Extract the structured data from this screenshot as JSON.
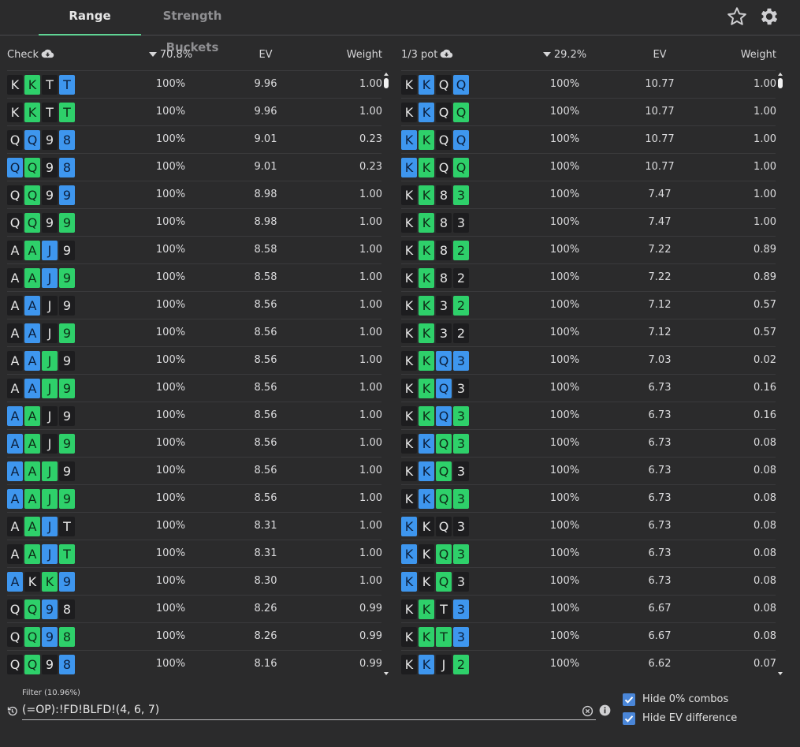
{
  "tabs": {
    "range": "Range",
    "strength_buckets": "Strength Buckets"
  },
  "icons": {
    "favorite": "star-icon",
    "settings": "gear-icon",
    "download": "cloud-download-icon",
    "history": "history-icon",
    "clear": "clear-circle-icon",
    "info": "info-icon"
  },
  "colors": {
    "spade_or_club_dark": "#1d1d1f",
    "heart_green": "#2ed06a",
    "diamond_blue": "#3e96ee",
    "accent": "#5fd494",
    "checkbox": "#4a86d8"
  },
  "panels": [
    {
      "name": "Check",
      "freq": "70.8%",
      "ev_label": "EV",
      "weight_label": "Weight",
      "rows": [
        {
          "cards": [
            [
              "K",
              "s"
            ],
            [
              "K",
              "h"
            ],
            [
              "T",
              "s"
            ],
            [
              "T",
              "d"
            ]
          ],
          "freq": "100%",
          "ev": "9.96",
          "weight": "1.00"
        },
        {
          "cards": [
            [
              "K",
              "s"
            ],
            [
              "K",
              "h"
            ],
            [
              "T",
              "s"
            ],
            [
              "T",
              "h"
            ]
          ],
          "freq": "100%",
          "ev": "9.96",
          "weight": "1.00"
        },
        {
          "cards": [
            [
              "Q",
              "s"
            ],
            [
              "Q",
              "d"
            ],
            [
              "9",
              "s"
            ],
            [
              "8",
              "d"
            ]
          ],
          "freq": "100%",
          "ev": "9.01",
          "weight": "0.23"
        },
        {
          "cards": [
            [
              "Q",
              "d"
            ],
            [
              "Q",
              "h"
            ],
            [
              "9",
              "s"
            ],
            [
              "8",
              "d"
            ]
          ],
          "freq": "100%",
          "ev": "9.01",
          "weight": "0.23"
        },
        {
          "cards": [
            [
              "Q",
              "s"
            ],
            [
              "Q",
              "h"
            ],
            [
              "9",
              "s"
            ],
            [
              "9",
              "d"
            ]
          ],
          "freq": "100%",
          "ev": "8.98",
          "weight": "1.00"
        },
        {
          "cards": [
            [
              "Q",
              "s"
            ],
            [
              "Q",
              "h"
            ],
            [
              "9",
              "s"
            ],
            [
              "9",
              "h"
            ]
          ],
          "freq": "100%",
          "ev": "8.98",
          "weight": "1.00"
        },
        {
          "cards": [
            [
              "A",
              "s"
            ],
            [
              "A",
              "h"
            ],
            [
              "J",
              "d"
            ],
            [
              "9",
              "s"
            ]
          ],
          "freq": "100%",
          "ev": "8.58",
          "weight": "1.00"
        },
        {
          "cards": [
            [
              "A",
              "s"
            ],
            [
              "A",
              "h"
            ],
            [
              "J",
              "d"
            ],
            [
              "9",
              "h"
            ]
          ],
          "freq": "100%",
          "ev": "8.58",
          "weight": "1.00"
        },
        {
          "cards": [
            [
              "A",
              "s"
            ],
            [
              "A",
              "d"
            ],
            [
              "J",
              "s"
            ],
            [
              "9",
              "s"
            ]
          ],
          "freq": "100%",
          "ev": "8.56",
          "weight": "1.00"
        },
        {
          "cards": [
            [
              "A",
              "s"
            ],
            [
              "A",
              "d"
            ],
            [
              "J",
              "s"
            ],
            [
              "9",
              "h"
            ]
          ],
          "freq": "100%",
          "ev": "8.56",
          "weight": "1.00"
        },
        {
          "cards": [
            [
              "A",
              "s"
            ],
            [
              "A",
              "d"
            ],
            [
              "J",
              "h"
            ],
            [
              "9",
              "s"
            ]
          ],
          "freq": "100%",
          "ev": "8.56",
          "weight": "1.00"
        },
        {
          "cards": [
            [
              "A",
              "s"
            ],
            [
              "A",
              "d"
            ],
            [
              "J",
              "h"
            ],
            [
              "9",
              "h"
            ]
          ],
          "freq": "100%",
          "ev": "8.56",
          "weight": "1.00"
        },
        {
          "cards": [
            [
              "A",
              "d"
            ],
            [
              "A",
              "h"
            ],
            [
              "J",
              "s"
            ],
            [
              "9",
              "s"
            ]
          ],
          "freq": "100%",
          "ev": "8.56",
          "weight": "1.00"
        },
        {
          "cards": [
            [
              "A",
              "d"
            ],
            [
              "A",
              "h"
            ],
            [
              "J",
              "s"
            ],
            [
              "9",
              "h"
            ]
          ],
          "freq": "100%",
          "ev": "8.56",
          "weight": "1.00"
        },
        {
          "cards": [
            [
              "A",
              "d"
            ],
            [
              "A",
              "h"
            ],
            [
              "J",
              "h"
            ],
            [
              "9",
              "s"
            ]
          ],
          "freq": "100%",
          "ev": "8.56",
          "weight": "1.00"
        },
        {
          "cards": [
            [
              "A",
              "d"
            ],
            [
              "A",
              "h"
            ],
            [
              "J",
              "h"
            ],
            [
              "9",
              "h"
            ]
          ],
          "freq": "100%",
          "ev": "8.56",
          "weight": "1.00"
        },
        {
          "cards": [
            [
              "A",
              "s"
            ],
            [
              "A",
              "h"
            ],
            [
              "J",
              "d"
            ],
            [
              "T",
              "s"
            ]
          ],
          "freq": "100%",
          "ev": "8.31",
          "weight": "1.00"
        },
        {
          "cards": [
            [
              "A",
              "s"
            ],
            [
              "A",
              "h"
            ],
            [
              "J",
              "d"
            ],
            [
              "T",
              "h"
            ]
          ],
          "freq": "100%",
          "ev": "8.31",
          "weight": "1.00"
        },
        {
          "cards": [
            [
              "A",
              "d"
            ],
            [
              "K",
              "s"
            ],
            [
              "K",
              "h"
            ],
            [
              "9",
              "d"
            ]
          ],
          "freq": "100%",
          "ev": "8.30",
          "weight": "1.00"
        },
        {
          "cards": [
            [
              "Q",
              "s"
            ],
            [
              "Q",
              "h"
            ],
            [
              "9",
              "d"
            ],
            [
              "8",
              "s"
            ]
          ],
          "freq": "100%",
          "ev": "8.26",
          "weight": "0.99"
        },
        {
          "cards": [
            [
              "Q",
              "s"
            ],
            [
              "Q",
              "h"
            ],
            [
              "9",
              "d"
            ],
            [
              "8",
              "h"
            ]
          ],
          "freq": "100%",
          "ev": "8.26",
          "weight": "0.99"
        },
        {
          "cards": [
            [
              "Q",
              "s"
            ],
            [
              "Q",
              "h"
            ],
            [
              "9",
              "s"
            ],
            [
              "8",
              "d"
            ]
          ],
          "freq": "100%",
          "ev": "8.16",
          "weight": "0.99"
        }
      ]
    },
    {
      "name": "1/3 pot",
      "freq": "29.2%",
      "ev_label": "EV",
      "weight_label": "Weight",
      "rows": [
        {
          "cards": [
            [
              "K",
              "s"
            ],
            [
              "K",
              "d"
            ],
            [
              "Q",
              "s"
            ],
            [
              "Q",
              "d"
            ]
          ],
          "freq": "100%",
          "ev": "10.77",
          "weight": "1.00"
        },
        {
          "cards": [
            [
              "K",
              "s"
            ],
            [
              "K",
              "d"
            ],
            [
              "Q",
              "s"
            ],
            [
              "Q",
              "h"
            ]
          ],
          "freq": "100%",
          "ev": "10.77",
          "weight": "1.00"
        },
        {
          "cards": [
            [
              "K",
              "d"
            ],
            [
              "K",
              "h"
            ],
            [
              "Q",
              "s"
            ],
            [
              "Q",
              "d"
            ]
          ],
          "freq": "100%",
          "ev": "10.77",
          "weight": "1.00"
        },
        {
          "cards": [
            [
              "K",
              "d"
            ],
            [
              "K",
              "h"
            ],
            [
              "Q",
              "s"
            ],
            [
              "Q",
              "h"
            ]
          ],
          "freq": "100%",
          "ev": "10.77",
          "weight": "1.00"
        },
        {
          "cards": [
            [
              "K",
              "s"
            ],
            [
              "K",
              "h"
            ],
            [
              "8",
              "s"
            ],
            [
              "3",
              "h"
            ]
          ],
          "freq": "100%",
          "ev": "7.47",
          "weight": "1.00"
        },
        {
          "cards": [
            [
              "K",
              "s"
            ],
            [
              "K",
              "h"
            ],
            [
              "8",
              "s"
            ],
            [
              "3",
              "s"
            ]
          ],
          "freq": "100%",
          "ev": "7.47",
          "weight": "1.00"
        },
        {
          "cards": [
            [
              "K",
              "s"
            ],
            [
              "K",
              "h"
            ],
            [
              "8",
              "s"
            ],
            [
              "2",
              "h"
            ]
          ],
          "freq": "100%",
          "ev": "7.22",
          "weight": "0.89"
        },
        {
          "cards": [
            [
              "K",
              "s"
            ],
            [
              "K",
              "h"
            ],
            [
              "8",
              "s"
            ],
            [
              "2",
              "s"
            ]
          ],
          "freq": "100%",
          "ev": "7.22",
          "weight": "0.89"
        },
        {
          "cards": [
            [
              "K",
              "s"
            ],
            [
              "K",
              "h"
            ],
            [
              "3",
              "s"
            ],
            [
              "2",
              "h"
            ]
          ],
          "freq": "100%",
          "ev": "7.12",
          "weight": "0.57"
        },
        {
          "cards": [
            [
              "K",
              "s"
            ],
            [
              "K",
              "h"
            ],
            [
              "3",
              "s"
            ],
            [
              "2",
              "s"
            ]
          ],
          "freq": "100%",
          "ev": "7.12",
          "weight": "0.57"
        },
        {
          "cards": [
            [
              "K",
              "s"
            ],
            [
              "K",
              "h"
            ],
            [
              "Q",
              "d"
            ],
            [
              "3",
              "d"
            ]
          ],
          "freq": "100%",
          "ev": "7.03",
          "weight": "0.02"
        },
        {
          "cards": [
            [
              "K",
              "s"
            ],
            [
              "K",
              "h"
            ],
            [
              "Q",
              "d"
            ],
            [
              "3",
              "s"
            ]
          ],
          "freq": "100%",
          "ev": "6.73",
          "weight": "0.16"
        },
        {
          "cards": [
            [
              "K",
              "s"
            ],
            [
              "K",
              "h"
            ],
            [
              "Q",
              "d"
            ],
            [
              "3",
              "h"
            ]
          ],
          "freq": "100%",
          "ev": "6.73",
          "weight": "0.16"
        },
        {
          "cards": [
            [
              "K",
              "s"
            ],
            [
              "K",
              "d"
            ],
            [
              "Q",
              "h"
            ],
            [
              "3",
              "h"
            ]
          ],
          "freq": "100%",
          "ev": "6.73",
          "weight": "0.08"
        },
        {
          "cards": [
            [
              "K",
              "s"
            ],
            [
              "K",
              "d"
            ],
            [
              "Q",
              "h"
            ],
            [
              "3",
              "s"
            ]
          ],
          "freq": "100%",
          "ev": "6.73",
          "weight": "0.08"
        },
        {
          "cards": [
            [
              "K",
              "s"
            ],
            [
              "K",
              "d"
            ],
            [
              "Q",
              "h"
            ],
            [
              "3",
              "h"
            ]
          ],
          "freq": "100%",
          "ev": "6.73",
          "weight": "0.08"
        },
        {
          "cards": [
            [
              "K",
              "d"
            ],
            [
              "K",
              "s"
            ],
            [
              "Q",
              "s"
            ],
            [
              "3",
              "s"
            ]
          ],
          "freq": "100%",
          "ev": "6.73",
          "weight": "0.08"
        },
        {
          "cards": [
            [
              "K",
              "d"
            ],
            [
              "K",
              "s"
            ],
            [
              "Q",
              "h"
            ],
            [
              "3",
              "h"
            ]
          ],
          "freq": "100%",
          "ev": "6.73",
          "weight": "0.08"
        },
        {
          "cards": [
            [
              "K",
              "d"
            ],
            [
              "K",
              "s"
            ],
            [
              "Q",
              "h"
            ],
            [
              "3",
              "s"
            ]
          ],
          "freq": "100%",
          "ev": "6.73",
          "weight": "0.08"
        },
        {
          "cards": [
            [
              "K",
              "s"
            ],
            [
              "K",
              "h"
            ],
            [
              "T",
              "s"
            ],
            [
              "3",
              "d"
            ]
          ],
          "freq": "100%",
          "ev": "6.67",
          "weight": "0.08"
        },
        {
          "cards": [
            [
              "K",
              "s"
            ],
            [
              "K",
              "h"
            ],
            [
              "T",
              "h"
            ],
            [
              "3",
              "d"
            ]
          ],
          "freq": "100%",
          "ev": "6.67",
          "weight": "0.08"
        },
        {
          "cards": [
            [
              "K",
              "s"
            ],
            [
              "K",
              "d"
            ],
            [
              "J",
              "s"
            ],
            [
              "2",
              "h"
            ]
          ],
          "freq": "100%",
          "ev": "6.62",
          "weight": "0.07"
        }
      ]
    }
  ],
  "filter": {
    "label": "Filter (10.96%)",
    "value": "(=OP):!FD!BLFD!(4, 6, 7)"
  },
  "options": {
    "hide_zero": "Hide 0% combos",
    "hide_ev": "Hide EV difference"
  }
}
